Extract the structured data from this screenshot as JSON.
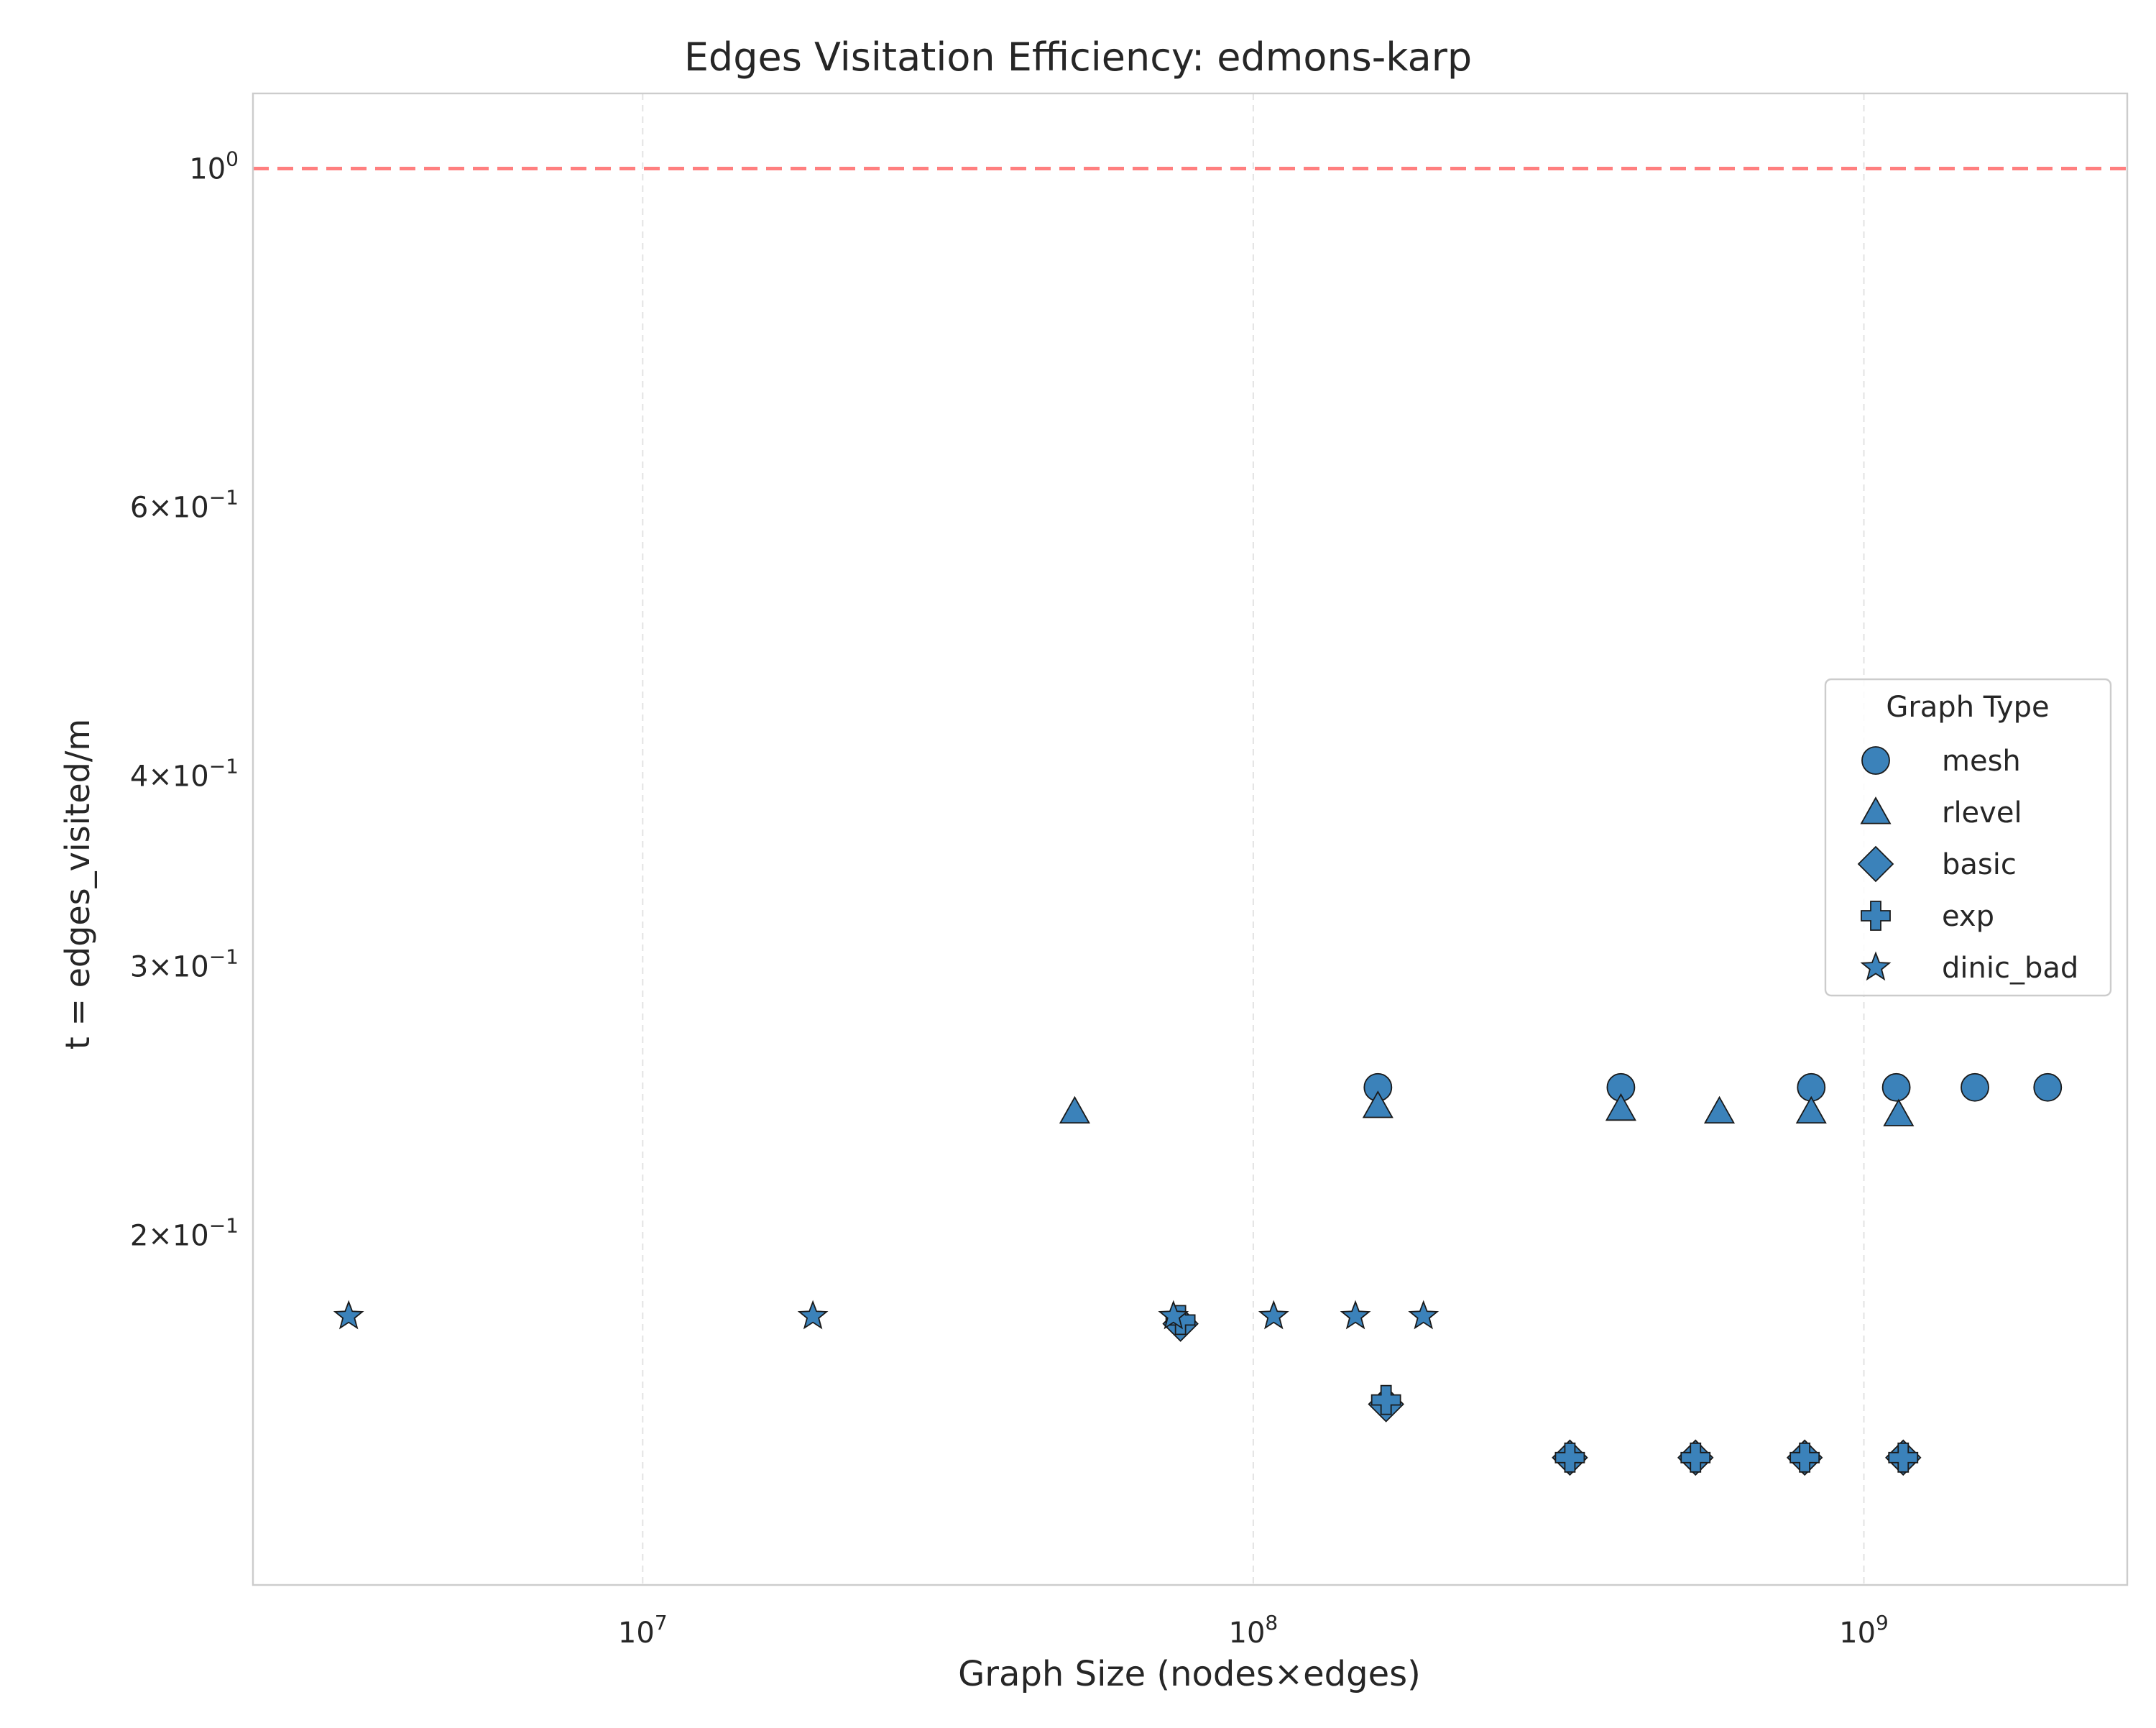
{
  "chart_data": {
    "type": "scatter",
    "title": "Edges Visitation Efficiency: edmons-karp",
    "xlabel": "Graph Size (nodes×edges)",
    "ylabel": "t = edges_visited/m",
    "xscale": "log",
    "yscale": "log",
    "xlim": [
      2300000,
      2700000000
    ],
    "ylim": [
      0.118,
      1.12
    ],
    "grid": "x-only, dashed",
    "x_ticks": [
      {
        "value": 10000000,
        "base": "10",
        "exp": "7"
      },
      {
        "value": 100000000,
        "base": "10",
        "exp": "8"
      },
      {
        "value": 1000000000,
        "base": "10",
        "exp": "9"
      }
    ],
    "y_ticks": [
      {
        "value": 1.0,
        "base": "10",
        "exp": "0"
      },
      {
        "value": 0.6,
        "base": "6×10",
        "exp": "−1"
      },
      {
        "value": 0.4,
        "base": "4×10",
        "exp": "−1"
      },
      {
        "value": 0.3,
        "base": "3×10",
        "exp": "−1"
      },
      {
        "value": 0.2,
        "base": "2×10",
        "exp": "−1"
      }
    ],
    "reference_line": {
      "y": 1.0,
      "style": "dashed",
      "color": "#ff7f7f"
    },
    "marker_color": "#3b82ba",
    "legend": {
      "title": "Graph Type",
      "position": "center-right",
      "entries": [
        "mesh",
        "rlevel",
        "basic",
        "exp",
        "dinic_bad"
      ]
    },
    "series": [
      {
        "name": "mesh",
        "marker": "circle",
        "points": [
          [
            160000000,
            0.25
          ],
          [
            400000000,
            0.25
          ],
          [
            820000000,
            0.25
          ],
          [
            1130000000,
            0.25
          ],
          [
            1520000000,
            0.25
          ],
          [
            2000000000,
            0.25
          ]
        ]
      },
      {
        "name": "rlevel",
        "marker": "triangle",
        "points": [
          [
            51000000,
            0.241
          ],
          [
            160000000,
            0.243
          ],
          [
            400000000,
            0.242
          ],
          [
            580000000,
            0.241
          ],
          [
            820000000,
            0.241
          ],
          [
            1140000000,
            0.24
          ]
        ]
      },
      {
        "name": "basic",
        "marker": "diamond",
        "points": [
          [
            76000000,
            0.175
          ],
          [
            165000000,
            0.155
          ],
          [
            330000000,
            0.143
          ],
          [
            530000000,
            0.143
          ],
          [
            800000000,
            0.143
          ],
          [
            1160000000,
            0.143
          ]
        ]
      },
      {
        "name": "exp",
        "marker": "plus",
        "points": [
          [
            76000000,
            0.176
          ],
          [
            165000000,
            0.156
          ],
          [
            330000000,
            0.143
          ],
          [
            530000000,
            0.143
          ],
          [
            800000000,
            0.143
          ],
          [
            1160000000,
            0.143
          ]
        ]
      },
      {
        "name": "dinic_bad",
        "marker": "star",
        "points": [
          [
            3300000,
            0.177
          ],
          [
            19000000,
            0.177
          ],
          [
            74000000,
            0.177
          ],
          [
            108000000,
            0.177
          ],
          [
            147000000,
            0.177
          ],
          [
            190000000,
            0.177
          ]
        ]
      }
    ]
  }
}
